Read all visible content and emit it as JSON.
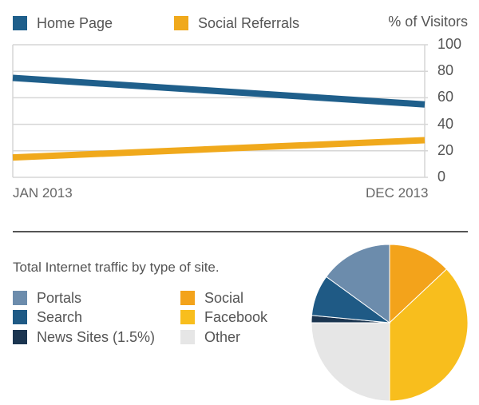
{
  "chart_data": [
    {
      "type": "line",
      "x": [
        "JAN 2013",
        "DEC 2013"
      ],
      "xlabel": "",
      "ylabel": "% of Visitors",
      "ylim": [
        0,
        100
      ],
      "yticks": [
        0,
        20,
        40,
        60,
        80,
        100
      ],
      "grid": true,
      "legend": "top-left",
      "series": [
        {
          "name": "Home Page",
          "color": "#1f5f8b",
          "values": [
            75,
            55
          ]
        },
        {
          "name": "Social Referrals",
          "color": "#f0a91c",
          "values": [
            15,
            28
          ]
        }
      ]
    },
    {
      "type": "pie",
      "title": "Total Internet traffic by type of site.",
      "legend": "left",
      "slices": [
        {
          "label": "Social",
          "value": 13,
          "color": "#f3a31b"
        },
        {
          "label": "Facebook",
          "value": 37,
          "color": "#f8be1d"
        },
        {
          "label": "Other",
          "value": 25,
          "color": "#e6e6e6"
        },
        {
          "label": "News Sites (1.5%)",
          "value": 1.5,
          "color": "#1b3550"
        },
        {
          "label": "Search",
          "value": 8.5,
          "color": "#1f5a85"
        },
        {
          "label": "Portals",
          "value": 15,
          "color": "#6c8cac"
        }
      ],
      "legend_items": [
        {
          "label": "Portals",
          "color": "#6c8cac"
        },
        {
          "label": "Search",
          "color": "#1f5a85"
        },
        {
          "label": "News Sites (1.5%)",
          "color": "#1b3550"
        },
        {
          "label": "Social",
          "color": "#f3a31b"
        },
        {
          "label": "Facebook",
          "color": "#f8be1d"
        },
        {
          "label": "Other",
          "color": "#e6e6e6"
        }
      ]
    }
  ]
}
